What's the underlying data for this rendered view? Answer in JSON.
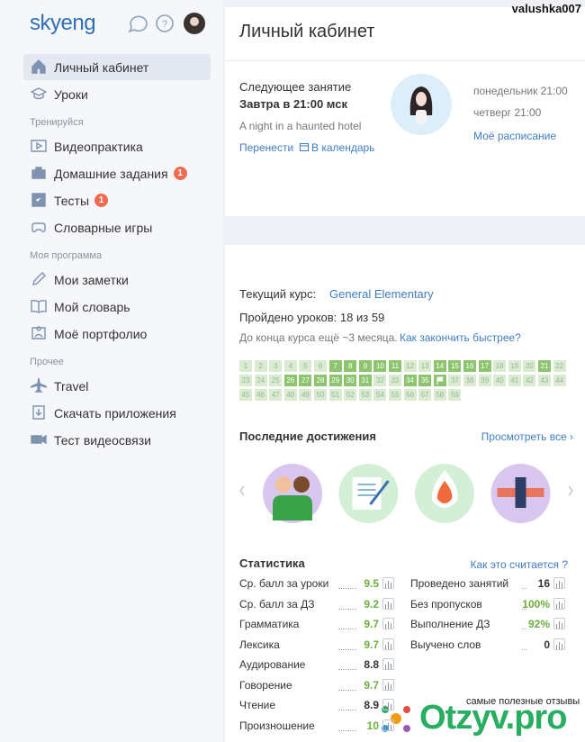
{
  "top_user": "valushka007",
  "logo": "skyeng",
  "sidebar": [
    {
      "label": "Личный кабинет",
      "active": true,
      "icon": "home"
    },
    {
      "label": "Уроки",
      "icon": "cap"
    },
    {
      "section": "Тренируйся"
    },
    {
      "label": "Видеопрактика",
      "icon": "play"
    },
    {
      "label": "Домашние задания",
      "badge": 1,
      "icon": "case"
    },
    {
      "label": "Тесты",
      "badge": 1,
      "icon": "check"
    },
    {
      "label": "Словарные игры",
      "icon": "game"
    },
    {
      "section": "Моя программа"
    },
    {
      "label": "Мои заметки",
      "icon": "pen"
    },
    {
      "label": "Мой словарь",
      "icon": "book"
    },
    {
      "label": "Моё портфолио",
      "icon": "user"
    },
    {
      "section": "Прочее"
    },
    {
      "label": "Travel",
      "icon": "plane"
    },
    {
      "label": "Скачать приложения",
      "icon": "down"
    },
    {
      "label": "Тест видеосвязи",
      "icon": "cam"
    }
  ],
  "page_title": "Личный кабинет",
  "next_lesson": {
    "heading": "Следующее занятие",
    "when": "Завтра в 21:00 мск",
    "topic": "A night in a haunted hotel",
    "reschedule": "Перенести",
    "calendar": "В календарь",
    "schedule": [
      "понедельник 21:00",
      "четверг 21:00"
    ],
    "schedule_link": "Моё расписание"
  },
  "course": {
    "label": "Текущий курс:",
    "name": "General Elementary",
    "progress": "Пройдено уроков: 18 из 59",
    "remaining": "До конца курса ещё ~3 месяца.",
    "faster": "Как закончить быстрее?",
    "lessons": [
      {
        "label": "1"
      },
      {
        "label": "2"
      },
      {
        "label": "3"
      },
      {
        "label": "4"
      },
      {
        "label": "5"
      },
      {
        "label": "6"
      },
      {
        "label": "7",
        "done": true
      },
      {
        "label": "8",
        "done": true
      },
      {
        "label": "9",
        "done": true
      },
      {
        "label": "10",
        "done": true
      },
      {
        "label": "11",
        "done": true
      },
      {
        "label": "12"
      },
      {
        "label": "13"
      },
      {
        "label": "14",
        "done": true
      },
      {
        "label": "15",
        "done": true
      },
      {
        "label": "16",
        "done": true
      },
      {
        "label": "17",
        "done": true
      },
      {
        "label": "18"
      },
      {
        "label": "19"
      },
      {
        "label": "20"
      },
      {
        "label": "21",
        "done": true
      },
      {
        "label": "22"
      },
      {
        "label": "23"
      },
      {
        "label": "24"
      },
      {
        "label": "25"
      },
      {
        "label": "26",
        "done": true
      },
      {
        "label": "27",
        "done": true
      },
      {
        "label": "28",
        "done": true
      },
      {
        "label": "29",
        "done": true
      },
      {
        "label": "30",
        "done": true
      },
      {
        "label": "31",
        "done": true
      },
      {
        "label": "32"
      },
      {
        "label": "33"
      },
      {
        "label": "34",
        "done": true
      },
      {
        "label": "35",
        "done": true
      },
      {
        "done": true,
        "flag": true
      },
      {
        "label": "37"
      },
      {
        "label": "38"
      },
      {
        "label": "39"
      },
      {
        "label": "40"
      },
      {
        "label": "41"
      },
      {
        "label": "42"
      },
      {
        "label": "43"
      },
      {
        "label": "44"
      },
      {
        "label": "45"
      },
      {
        "label": "46"
      },
      {
        "label": "47"
      },
      {
        "label": "48"
      },
      {
        "label": "49"
      },
      {
        "label": "50"
      },
      {
        "label": "51"
      },
      {
        "label": "52"
      },
      {
        "label": "53"
      },
      {
        "label": "54"
      },
      {
        "label": "55"
      },
      {
        "label": "56"
      },
      {
        "label": "57"
      },
      {
        "label": "58"
      },
      {
        "label": "59"
      }
    ]
  },
  "achievements": {
    "title": "Последние достижения",
    "link": "Просмотреть все ›",
    "badges": [
      {
        "bg": "#d8c6ef"
      },
      {
        "bg": "#d3efd5"
      },
      {
        "bg": "#d3efd5"
      },
      {
        "bg": "#d8c6ef"
      }
    ]
  },
  "stats": {
    "title": "Статистика",
    "link": "Как это считается ?",
    "left": [
      {
        "label": "Ср. балл за уроки",
        "value": "9.5",
        "good": true
      },
      {
        "label": "Ср. балл за ДЗ",
        "value": "9.2",
        "good": true
      },
      {
        "label": "Грамматика",
        "value": "9.7",
        "good": true
      },
      {
        "label": "Лексика",
        "value": "9.7",
        "good": true
      },
      {
        "label": "Аудирование",
        "value": "8.8"
      },
      {
        "label": "Говорение",
        "value": "9.7",
        "good": true
      },
      {
        "label": "Чтение",
        "value": "8.9"
      },
      {
        "label": "Произношение",
        "value": "10",
        "good": true
      }
    ],
    "right": [
      {
        "label": "Проведено занятий",
        "value": "16"
      },
      {
        "label": "Без пропусков",
        "value": "100%",
        "good": true
      },
      {
        "label": "Выполнение ДЗ",
        "value": "92%",
        "good": true
      },
      {
        "label": "Выучено слов",
        "value": "0"
      }
    ]
  },
  "watermark": {
    "tagline": "самые полезные отзывы",
    "brand": "Otzyv.pro"
  }
}
